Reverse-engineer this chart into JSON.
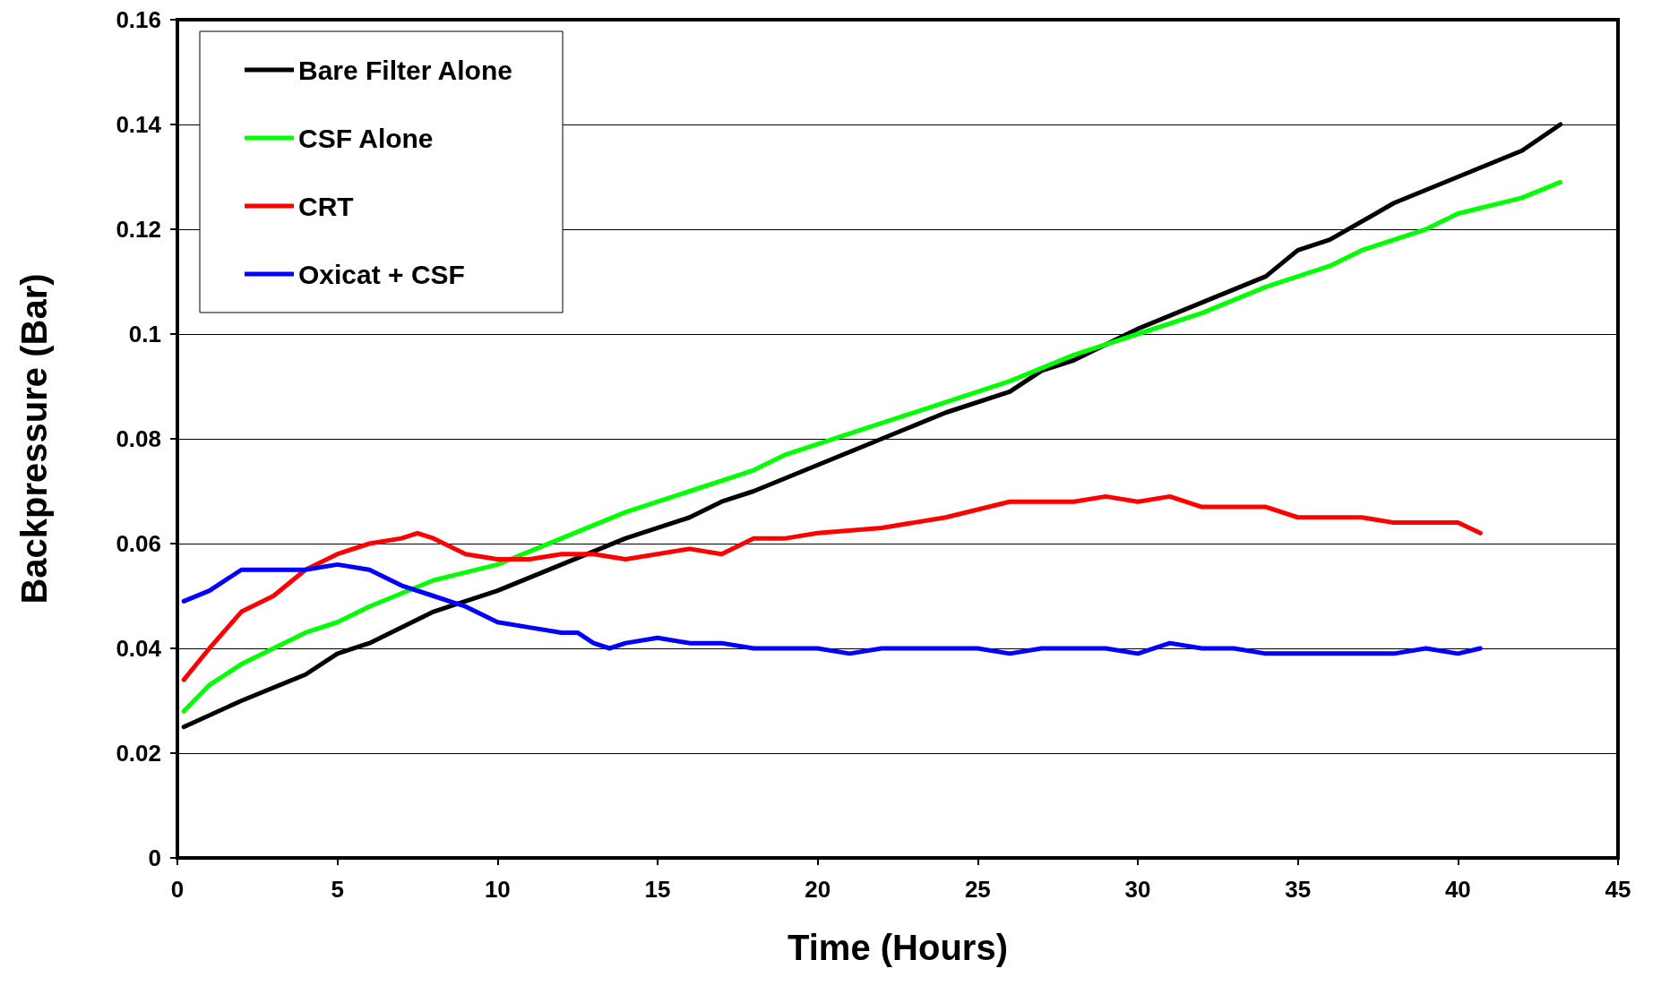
{
  "chart_data": {
    "type": "line",
    "xlabel": "Time (Hours)",
    "ylabel": "Backpressure (Bar)",
    "xlim": [
      0,
      45
    ],
    "xticks": [
      0,
      5,
      10,
      15,
      20,
      25,
      30,
      35,
      40,
      45
    ],
    "ylim": [
      0,
      0.16
    ],
    "yticks": [
      0,
      0.02,
      0.04,
      0.06,
      0.08,
      0.1,
      0.12,
      0.14,
      0.16
    ],
    "grid": "y",
    "legend": "top left",
    "marker": "none",
    "line_style": "solid",
    "series": [
      {
        "name": "Bare Filter Alone",
        "color": "#000000",
        "x": [
          0.2,
          2,
          4,
          5,
          6,
          8,
          10,
          12,
          14,
          16,
          17,
          18,
          20,
          22,
          24,
          26,
          27,
          28,
          30,
          32,
          34,
          35,
          36,
          38,
          40,
          42,
          43.2
        ],
        "values": [
          0.025,
          0.03,
          0.035,
          0.039,
          0.041,
          0.047,
          0.051,
          0.056,
          0.061,
          0.065,
          0.068,
          0.07,
          0.075,
          0.08,
          0.085,
          0.089,
          0.093,
          0.095,
          0.101,
          0.106,
          0.111,
          0.116,
          0.118,
          0.125,
          0.13,
          0.135,
          0.14
        ]
      },
      {
        "name": "CSF Alone",
        "color": "#00ff00",
        "x": [
          0.2,
          1,
          2,
          4,
          5,
          6,
          8,
          10,
          12,
          14,
          16,
          18,
          19,
          20,
          22,
          24,
          26,
          28,
          30,
          32,
          34,
          36,
          37,
          39,
          40,
          42,
          43.2
        ],
        "values": [
          0.028,
          0.033,
          0.037,
          0.043,
          0.045,
          0.048,
          0.053,
          0.056,
          0.061,
          0.066,
          0.07,
          0.074,
          0.077,
          0.079,
          0.083,
          0.087,
          0.091,
          0.096,
          0.1,
          0.104,
          0.109,
          0.113,
          0.116,
          0.12,
          0.123,
          0.126,
          0.129
        ]
      },
      {
        "name": "CRT",
        "color": "#ff0000",
        "x": [
          0.2,
          1,
          2,
          3,
          4,
          5,
          6,
          7,
          7.5,
          8,
          9,
          10,
          11,
          12,
          13,
          14,
          16,
          17,
          18,
          19,
          20,
          22,
          24,
          26,
          28,
          29,
          30,
          31,
          32,
          34,
          35,
          37,
          38,
          40,
          40.7
        ],
        "values": [
          0.034,
          0.04,
          0.047,
          0.05,
          0.055,
          0.058,
          0.06,
          0.061,
          0.062,
          0.061,
          0.058,
          0.057,
          0.057,
          0.058,
          0.058,
          0.057,
          0.059,
          0.058,
          0.061,
          0.061,
          0.062,
          0.063,
          0.065,
          0.068,
          0.068,
          0.069,
          0.068,
          0.069,
          0.067,
          0.067,
          0.065,
          0.065,
          0.064,
          0.064,
          0.062
        ]
      },
      {
        "name": "Oxicat + CSF",
        "color": "#0000ff",
        "x": [
          0.2,
          1,
          2,
          3,
          4,
          5,
          6,
          7,
          8,
          9,
          10,
          11,
          12,
          12.5,
          13,
          13.5,
          14,
          15,
          16,
          17,
          18,
          20,
          21,
          22,
          25,
          26,
          27,
          29,
          30,
          31,
          32,
          33,
          34,
          38,
          39,
          40,
          40.7
        ],
        "values": [
          0.049,
          0.051,
          0.055,
          0.055,
          0.055,
          0.056,
          0.055,
          0.052,
          0.05,
          0.048,
          0.045,
          0.044,
          0.043,
          0.043,
          0.041,
          0.04,
          0.041,
          0.042,
          0.041,
          0.041,
          0.04,
          0.04,
          0.039,
          0.04,
          0.04,
          0.039,
          0.04,
          0.04,
          0.039,
          0.041,
          0.04,
          0.04,
          0.039,
          0.039,
          0.04,
          0.039,
          0.04
        ]
      }
    ]
  }
}
